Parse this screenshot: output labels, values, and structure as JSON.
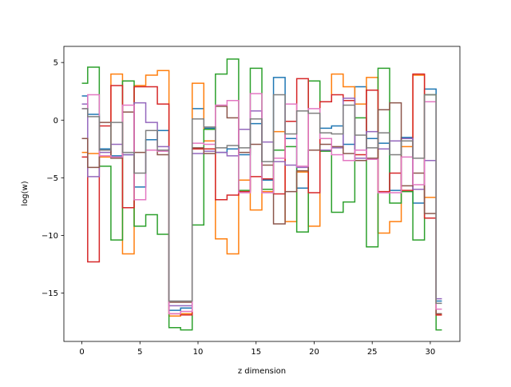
{
  "chart_data": {
    "type": "line",
    "drawstyle": "steps-mid",
    "title": "",
    "xlabel": "z dimension",
    "ylabel": "log(w)",
    "xlim": [
      -1.55,
      32.55
    ],
    "ylim": [
      -19.2,
      6.4
    ],
    "xticks": [
      0,
      5,
      10,
      15,
      20,
      25,
      30
    ],
    "yticks": [
      -15,
      -10,
      -5,
      0,
      5
    ],
    "ytick_labels": [
      "−15",
      "−10",
      "−5",
      "0",
      "5"
    ],
    "grid": false,
    "legend": "none",
    "x": [
      0,
      1,
      2,
      3,
      4,
      5,
      6,
      7,
      8,
      9,
      10,
      11,
      12,
      13,
      14,
      15,
      16,
      17,
      18,
      19,
      20,
      21,
      22,
      23,
      24,
      25,
      26,
      27,
      28,
      29,
      30,
      31
    ],
    "series": [
      {
        "color": "#1f77b4",
        "values": [
          2.1,
          0.5,
          -2.5,
          -3.1,
          -3.0,
          -5.8,
          -1.7,
          -0.9,
          -16.5,
          -16.3,
          1.0,
          -0.7,
          -2.8,
          -2.5,
          -3.0,
          -0.3,
          -5.2,
          3.7,
          -1.6,
          -5.9,
          -2.6,
          -0.7,
          -0.5,
          -2.1,
          2.9,
          -1.6,
          -2.0,
          -6.1,
          -1.5,
          -7.2,
          2.7,
          -15.7
        ]
      },
      {
        "color": "#ff7f0e",
        "values": [
          -2.8,
          -2.9,
          -3.2,
          4.0,
          -11.6,
          3.0,
          3.9,
          4.3,
          -17.0,
          -16.8,
          3.2,
          -1.8,
          -10.3,
          -11.6,
          -5.2,
          -7.8,
          -6.2,
          -1.0,
          -8.8,
          -4.5,
          -9.2,
          1.6,
          4.0,
          2.9,
          1.4,
          3.7,
          -9.8,
          -8.8,
          -2.3,
          3.9,
          -6.7,
          -16.9
        ]
      },
      {
        "color": "#2ca02c",
        "values": [
          3.2,
          4.6,
          -4.0,
          -10.4,
          3.4,
          -9.2,
          -8.2,
          -9.9,
          -18.0,
          -18.2,
          -9.1,
          -0.8,
          4.0,
          5.3,
          -6.1,
          4.5,
          -6.0,
          -2.6,
          -2.3,
          -9.7,
          3.4,
          -2.7,
          -8.0,
          -7.1,
          0.2,
          -11.0,
          4.5,
          -7.2,
          -6.2,
          -10.4,
          2.2,
          -18.2
        ]
      },
      {
        "color": "#d62728",
        "values": [
          -3.2,
          -12.3,
          -0.5,
          3.0,
          -7.6,
          2.9,
          2.9,
          1.4,
          -16.8,
          -16.9,
          -2.5,
          -2.5,
          -6.9,
          -6.5,
          -6.2,
          -4.9,
          -5.1,
          -6.4,
          -0.1,
          3.6,
          -6.3,
          1.6,
          2.2,
          1.7,
          -3.0,
          2.6,
          -6.2,
          -4.6,
          -6.1,
          4.0,
          -8.5,
          -16.9
        ]
      },
      {
        "color": "#9467bd",
        "values": [
          1.4,
          -4.9,
          -2.8,
          -2.1,
          -3.0,
          1.5,
          -0.2,
          -2.3,
          -16.1,
          -16.1,
          -2.9,
          -2.7,
          -2.8,
          -3.1,
          -0.8,
          0.8,
          -1.9,
          -3.6,
          -3.9,
          -4.1,
          -2.6,
          -2.6,
          -2.4,
          1.9,
          -3.3,
          -1.0,
          -2.5,
          -1.8,
          -1.6,
          -6.0,
          -3.5,
          -15.5
        ]
      },
      {
        "color": "#8c564b",
        "values": [
          -1.6,
          -4.1,
          -0.2,
          -3.3,
          0.7,
          -2.8,
          -2.6,
          -3.0,
          -15.8,
          -15.8,
          -2.4,
          -2.9,
          1.2,
          0.2,
          -2.8,
          -2.1,
          -3.9,
          -9.0,
          -6.2,
          -4.4,
          -2.6,
          -2.1,
          -2.3,
          -2.9,
          -3.5,
          -3.3,
          0.9,
          1.5,
          -5.7,
          -4.6,
          -8.1,
          -16.8
        ]
      },
      {
        "color": "#e377c2",
        "values": [
          1.0,
          2.2,
          -3.1,
          -3.2,
          1.3,
          -6.9,
          -2.6,
          -2.7,
          -16.8,
          -16.6,
          -2.0,
          -2.1,
          1.3,
          1.7,
          -6.3,
          2.3,
          -6.3,
          -3.3,
          1.4,
          -4.0,
          1.0,
          -1.6,
          -3.0,
          -3.5,
          -2.6,
          -3.4,
          -6.3,
          -6.3,
          -3.2,
          -5.6,
          1.6,
          -16.4
        ]
      },
      {
        "color": "#7f7f7f",
        "values": [
          1.0,
          0.3,
          -2.6,
          -0.2,
          -2.8,
          -4.6,
          -0.9,
          -2.6,
          -15.7,
          -15.7,
          0.1,
          -0.6,
          -2.4,
          -2.2,
          -2.4,
          0.1,
          -3.6,
          2.2,
          -1.2,
          0.8,
          0.6,
          -1.1,
          -1.2,
          1.3,
          -1.3,
          -2.4,
          -1.1,
          -3.0,
          -1.8,
          -3.3,
          2.2,
          -15.9
        ]
      }
    ]
  }
}
